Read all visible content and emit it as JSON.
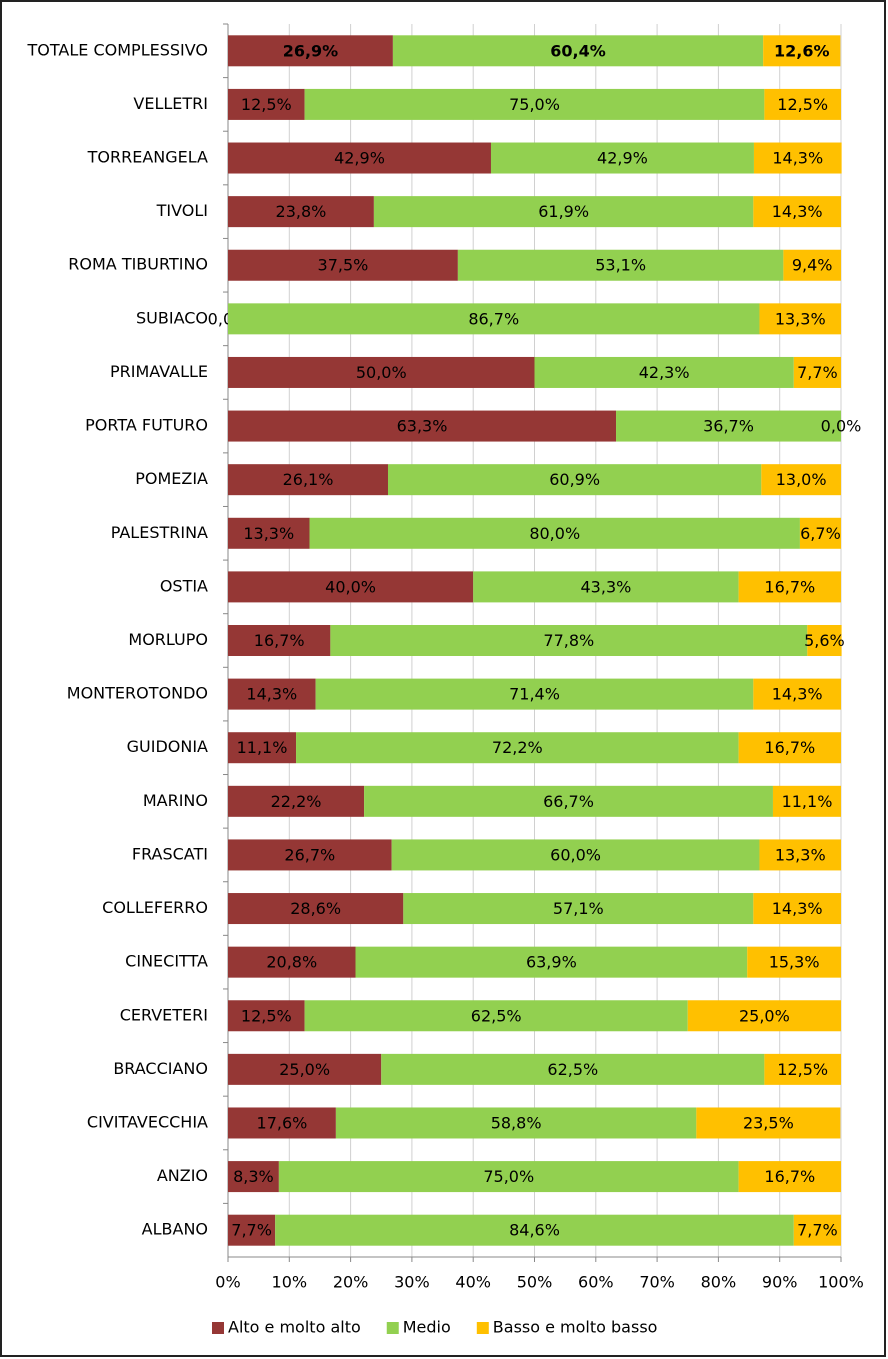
{
  "chart_data": {
    "type": "stacked-bar-horizontal",
    "categories": [
      "TOTALE COMPLESSIVO",
      "VELLETRI",
      "TORREANGELA",
      "TIVOLI",
      "ROMA TIBURTINO",
      "SUBIACO",
      "PRIMAVALLE",
      "PORTA FUTURO",
      "POMEZIA",
      "PALESTRINA",
      "OSTIA",
      "MORLUPO",
      "MONTEROTONDO",
      "GUIDONIA",
      "MARINO",
      "FRASCATI",
      "COLLEFERRO",
      "CINECITTA",
      "CERVETERI",
      "BRACCIANO",
      "CIVITAVECCHIA",
      "ANZIO",
      "ALBANO"
    ],
    "series": [
      {
        "name": "Alto e molto alto",
        "color": "#953735",
        "values": [
          26.9,
          12.5,
          42.9,
          23.8,
          37.5,
          0.0,
          50.0,
          63.3,
          26.1,
          13.3,
          40.0,
          16.7,
          14.3,
          11.1,
          22.2,
          26.7,
          28.6,
          20.8,
          12.5,
          25.0,
          17.6,
          8.3,
          7.7
        ],
        "value_labels": [
          "26,9%",
          "12,5%",
          "42,9%",
          "23,8%",
          "37,5%",
          "0,0%",
          "50,0%",
          "63,3%",
          "26,1%",
          "13,3%",
          "40,0%",
          "16,7%",
          "14,3%",
          "11,1%",
          "22,2%",
          "26,7%",
          "28,6%",
          "20,8%",
          "12,5%",
          "25,0%",
          "17,6%",
          "8,3%",
          "7,7%"
        ]
      },
      {
        "name": "Medio",
        "color": "#92d050",
        "values": [
          60.4,
          75.0,
          42.9,
          61.9,
          53.1,
          86.7,
          42.3,
          36.7,
          60.9,
          80.0,
          43.3,
          77.8,
          71.4,
          72.2,
          66.7,
          60.0,
          57.1,
          63.9,
          62.5,
          62.5,
          58.8,
          75.0,
          84.6
        ],
        "value_labels": [
          "60,4%",
          "75,0%",
          "42,9%",
          "61,9%",
          "53,1%",
          "86,7%",
          "42,3%",
          "36,7%",
          "60,9%",
          "80,0%",
          "43,3%",
          "77,8%",
          "71,4%",
          "72,2%",
          "66,7%",
          "60,0%",
          "57,1%",
          "63,9%",
          "62,5%",
          "62,5%",
          "58,8%",
          "75,0%",
          "84,6%"
        ]
      },
      {
        "name": "Basso e molto basso",
        "color": "#ffc000",
        "values": [
          12.6,
          12.5,
          14.3,
          14.3,
          9.4,
          13.3,
          7.7,
          0.0,
          13.0,
          6.7,
          16.7,
          5.6,
          14.3,
          16.7,
          11.1,
          13.3,
          14.3,
          15.3,
          25.0,
          12.5,
          23.5,
          16.7,
          7.7
        ],
        "value_labels": [
          "12,6%",
          "12,5%",
          "14,3%",
          "14,3%",
          "9,4%",
          "13,3%",
          "7,7%",
          "0,0%",
          "13,0%",
          "6,7%",
          "16,7%",
          "5,6%",
          "14,3%",
          "16,7%",
          "11,1%",
          "13,3%",
          "14,3%",
          "15,3%",
          "25,0%",
          "12,5%",
          "23,5%",
          "16,7%",
          "7,7%"
        ]
      }
    ],
    "xlim": [
      0,
      100
    ],
    "xticks": [
      {
        "value": 0,
        "label": "0%"
      },
      {
        "value": 10,
        "label": "10%"
      },
      {
        "value": 20,
        "label": "20%"
      },
      {
        "value": 30,
        "label": "30%"
      },
      {
        "value": 40,
        "label": "40%"
      },
      {
        "value": 50,
        "label": "50%"
      },
      {
        "value": 60,
        "label": "60%"
      },
      {
        "value": 70,
        "label": "70%"
      },
      {
        "value": 80,
        "label": "80%"
      },
      {
        "value": 90,
        "label": "90%"
      },
      {
        "value": 100,
        "label": "100%"
      }
    ],
    "grid": true,
    "legend": "bottom"
  }
}
